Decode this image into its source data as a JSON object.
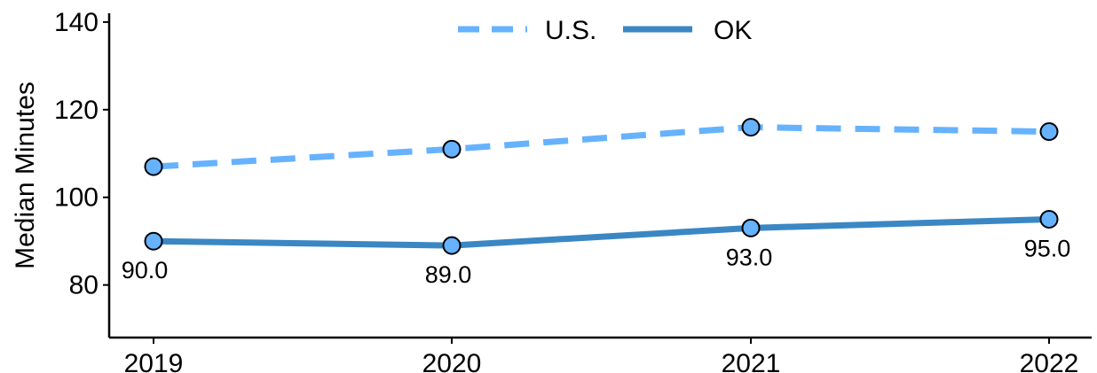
{
  "chart_data": {
    "type": "line",
    "title": "",
    "xlabel": "",
    "ylabel": "Median Minutes",
    "categories": [
      "2019",
      "2020",
      "2021",
      "2022"
    ],
    "ylim": [
      68,
      142
    ],
    "yticks": [
      80,
      100,
      120,
      140
    ],
    "grid": false,
    "legend_position": "top-center",
    "series": [
      {
        "name": "U.S.",
        "values": [
          107,
          111,
          116,
          115
        ],
        "line_style": "dashed",
        "line_color": "#66b2ff",
        "show_data_labels": false,
        "data_labels": []
      },
      {
        "name": "OK",
        "values": [
          90,
          89,
          93,
          95
        ],
        "line_style": "solid",
        "line_color": "#3a87c4",
        "show_data_labels": true,
        "data_labels": [
          "90.0",
          "89.0",
          "93.0",
          "95.0"
        ]
      }
    ],
    "marker_fill": "#66b2ff",
    "marker_edge": "#000000"
  }
}
